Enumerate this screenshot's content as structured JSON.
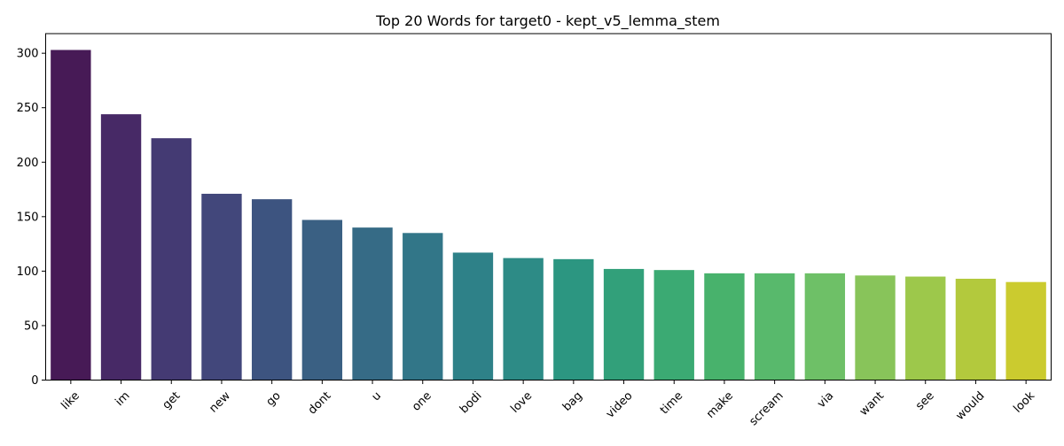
{
  "chart_data": {
    "type": "bar",
    "title": "Top 20 Words for target0 - kept_v5_lemma_stem",
    "xlabel": "",
    "ylabel": "",
    "categories": [
      "like",
      "im",
      "get",
      "new",
      "go",
      "dont",
      "u",
      "one",
      "bodi",
      "love",
      "bag",
      "video",
      "time",
      "make",
      "scream",
      "via",
      "want",
      "see",
      "would",
      "look"
    ],
    "values": [
      303,
      244,
      222,
      171,
      166,
      147,
      140,
      135,
      117,
      112,
      111,
      102,
      101,
      98,
      98,
      98,
      96,
      95,
      93,
      90
    ],
    "ylim": [
      0,
      318
    ],
    "yticks": [
      0,
      50,
      100,
      150,
      200,
      250,
      300
    ],
    "grid": false,
    "legend": "none",
    "palette": [
      "#471a56",
      "#472966",
      "#443a73",
      "#42477b",
      "#3d5480",
      "#3a6083",
      "#366b86",
      "#327688",
      "#2e8188",
      "#2d8b86",
      "#2c9681",
      "#32a07a",
      "#3baa73",
      "#48b26c",
      "#58b96c",
      "#6ec067",
      "#88c45a",
      "#9dc84b",
      "#b3c93d",
      "#cbcb2f"
    ]
  }
}
